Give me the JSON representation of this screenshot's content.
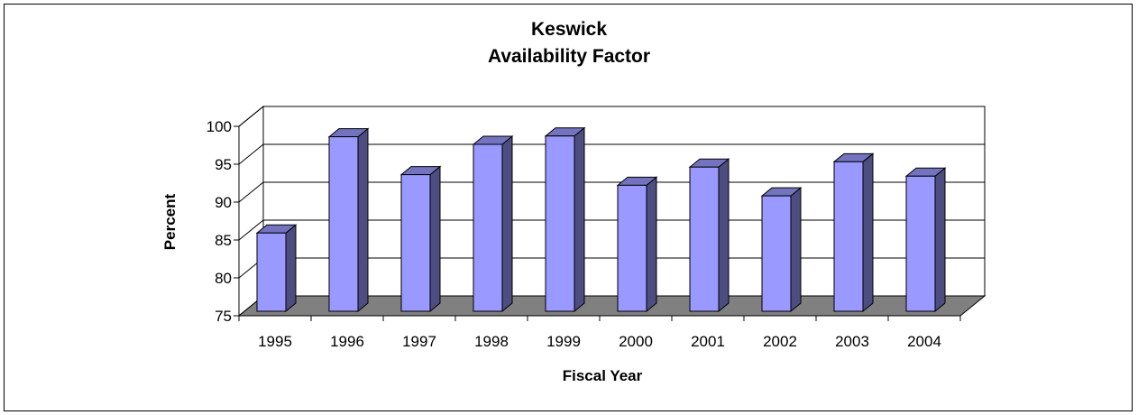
{
  "chart_data": {
    "type": "bar",
    "title_lines": [
      "Keswick",
      "Availability Factor"
    ],
    "xlabel": "Fiscal Year",
    "ylabel": "Percent",
    "categories": [
      "1995",
      "1996",
      "1997",
      "1998",
      "1999",
      "2000",
      "2001",
      "2002",
      "2003",
      "2004"
    ],
    "values": [
      85.8,
      98.5,
      93.5,
      97.5,
      98.6,
      92.1,
      94.5,
      90.7,
      95.2,
      93.3
    ],
    "ylim": [
      75,
      100
    ],
    "yticks": [
      75,
      80,
      85,
      90,
      95,
      100
    ],
    "grid": true,
    "legend": "none",
    "colors": {
      "bar_front": "#9999ff",
      "bar_side": "#4d4d80",
      "bar_top": "#7373bf",
      "floor": "#808080",
      "wall": "#ffffff",
      "gridline": "#000000"
    }
  }
}
